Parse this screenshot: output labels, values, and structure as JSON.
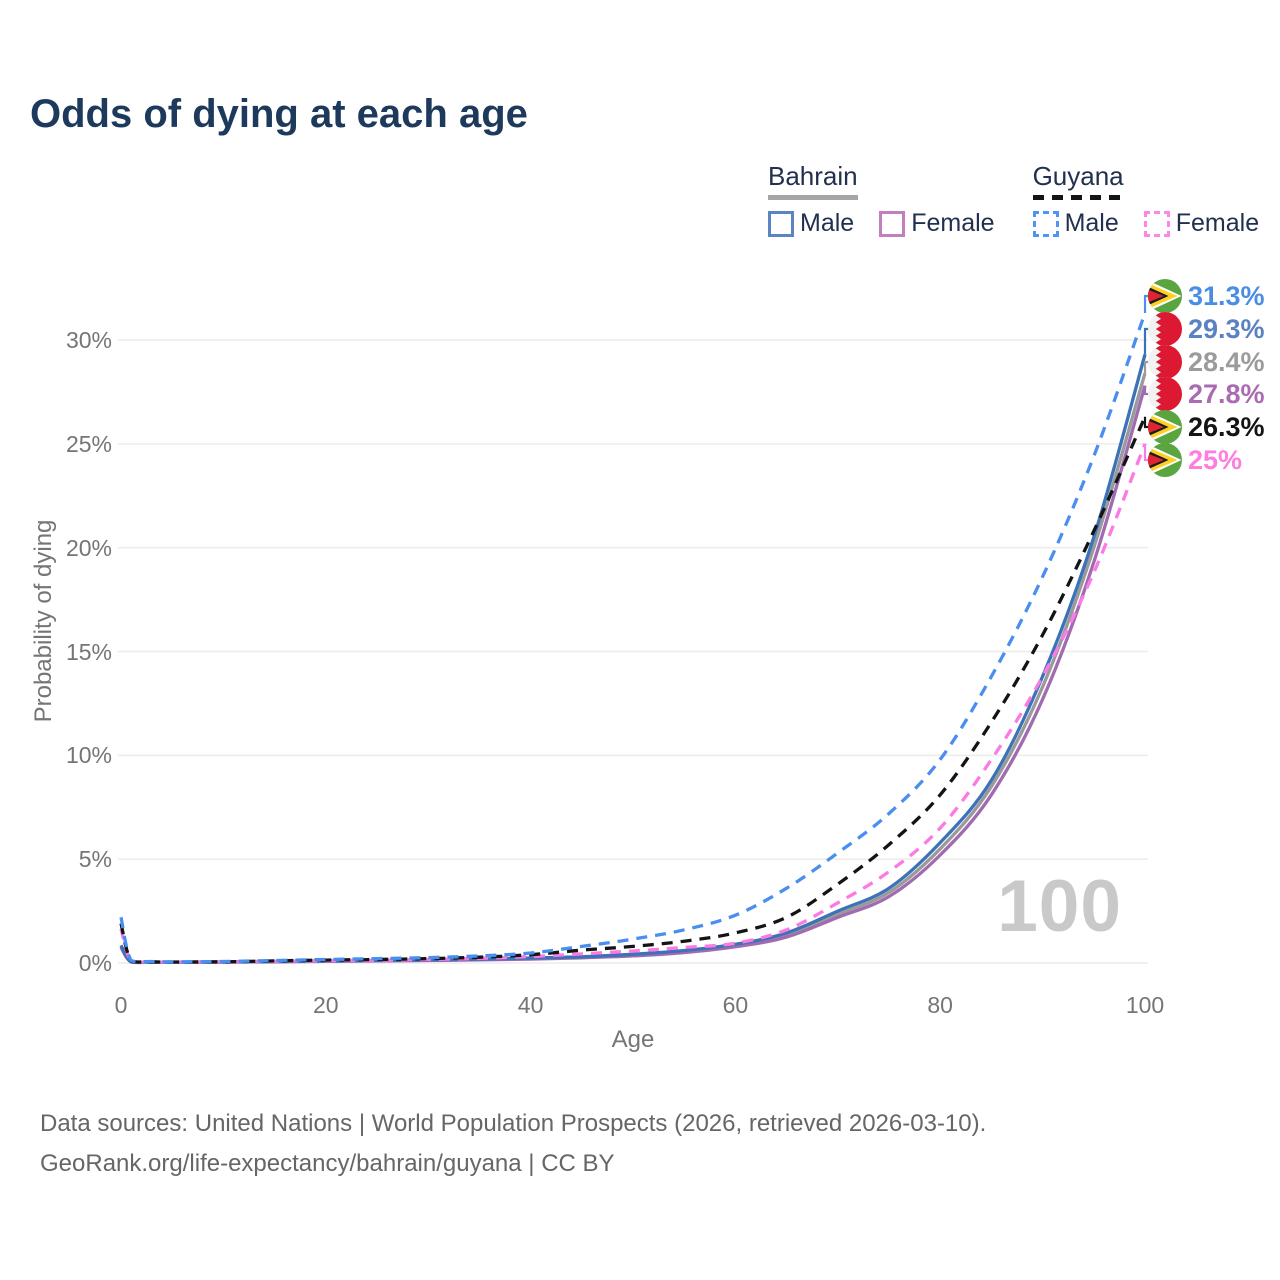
{
  "title": "Odds of dying at each age",
  "legend": {
    "groups": [
      {
        "name": "Bahrain",
        "underline": {
          "style": "solid",
          "color": "#a6a6a6"
        },
        "items": [
          {
            "label": "Male",
            "swatch_color": "#5b85c2",
            "dashed": false
          },
          {
            "label": "Female",
            "swatch_color": "#c17fc0",
            "dashed": false
          }
        ]
      },
      {
        "name": "Guyana",
        "underline": {
          "style": "dashed",
          "color": "#141414"
        },
        "items": [
          {
            "label": "Male",
            "swatch_color": "#4f94f2",
            "dashed": true
          },
          {
            "label": "Female",
            "swatch_color": "#fb85e9",
            "dashed": true
          }
        ]
      }
    ]
  },
  "chart_data": {
    "type": "line",
    "title": "Odds of dying at each age",
    "xlabel": "Age",
    "ylabel": "Probability of dying",
    "xlim": [
      0,
      100
    ],
    "ylim_pct": [
      0,
      32
    ],
    "grid": true,
    "x_ticks": [
      0,
      20,
      40,
      60,
      80,
      100
    ],
    "y_ticks_pct": [
      0,
      5,
      10,
      15,
      20,
      25,
      30
    ],
    "y_tick_labels": [
      "0%",
      "5%",
      "10%",
      "15%",
      "20%",
      "25%",
      "30%"
    ],
    "age_label": "100",
    "ages": [
      0,
      1,
      3,
      5,
      10,
      15,
      20,
      25,
      30,
      35,
      40,
      45,
      50,
      55,
      60,
      65,
      70,
      75,
      80,
      85,
      90,
      95,
      100
    ],
    "series": [
      {
        "id": "bahrain_total",
        "name": "Bahrain",
        "country": "Bahrain",
        "sex": "both",
        "line": "solid",
        "color": "#9a9a9a",
        "values_pct": [
          0.8,
          0.055,
          0.038,
          0.035,
          0.045,
          0.065,
          0.09,
          0.11,
          0.14,
          0.17,
          0.22,
          0.28,
          0.38,
          0.55,
          0.85,
          1.35,
          2.35,
          3.4,
          5.5,
          8.5,
          13.3,
          20.0,
          28.4
        ],
        "end_value_pct": 28.4
      },
      {
        "id": "bahrain_female",
        "name": "Bahrain Female",
        "country": "Bahrain",
        "sex": "female",
        "line": "solid",
        "color": "#a06bb0",
        "values_pct": [
          0.75,
          0.05,
          0.035,
          0.03,
          0.04,
          0.06,
          0.08,
          0.1,
          0.12,
          0.15,
          0.19,
          0.25,
          0.34,
          0.5,
          0.78,
          1.25,
          2.2,
          3.2,
          5.2,
          8.1,
          12.7,
          19.3,
          27.8
        ],
        "end_value_pct": 27.8
      },
      {
        "id": "bahrain_male",
        "name": "Bahrain Male",
        "country": "Bahrain",
        "sex": "male",
        "line": "solid",
        "color": "#3c72b8",
        "values_pct": [
          0.85,
          0.06,
          0.04,
          0.04,
          0.05,
          0.07,
          0.1,
          0.12,
          0.15,
          0.19,
          0.24,
          0.3,
          0.42,
          0.6,
          0.9,
          1.45,
          2.5,
          3.6,
          5.8,
          8.8,
          13.8,
          20.5,
          29.3
        ],
        "end_value_pct": 29.3
      },
      {
        "id": "guyana_female",
        "name": "Guyana Female",
        "country": "Guyana",
        "sex": "female",
        "line": "dashed",
        "color": "#fb7ae4",
        "values_pct": [
          1.65,
          0.1,
          0.05,
          0.045,
          0.05,
          0.08,
          0.11,
          0.13,
          0.17,
          0.22,
          0.31,
          0.44,
          0.58,
          0.75,
          0.95,
          1.6,
          2.9,
          4.4,
          6.5,
          9.8,
          13.8,
          18.8,
          25.0
        ],
        "end_value_pct": 25.0
      },
      {
        "id": "guyana_total",
        "name": "Guyana",
        "country": "Guyana",
        "sex": "both",
        "line": "dashed",
        "color": "#141414",
        "values_pct": [
          1.9,
          0.11,
          0.06,
          0.05,
          0.06,
          0.1,
          0.14,
          0.17,
          0.21,
          0.28,
          0.4,
          0.62,
          0.8,
          1.05,
          1.45,
          2.2,
          3.8,
          5.7,
          8.1,
          11.6,
          15.8,
          20.8,
          26.3
        ],
        "end_value_pct": 26.3
      },
      {
        "id": "guyana_male",
        "name": "Guyana Male",
        "country": "Guyana",
        "sex": "male",
        "line": "dashed",
        "color": "#4a8ef0",
        "values_pct": [
          2.2,
          0.12,
          0.07,
          0.06,
          0.07,
          0.12,
          0.17,
          0.21,
          0.26,
          0.34,
          0.48,
          0.8,
          1.15,
          1.6,
          2.3,
          3.6,
          5.3,
          7.2,
          9.8,
          13.8,
          18.6,
          24.4,
          31.3
        ],
        "end_value_pct": 31.3
      }
    ]
  },
  "end_labels": [
    {
      "series": "guyana_male",
      "text": "31.3%",
      "flag": "guyana",
      "color": "#4a8ee4"
    },
    {
      "series": "bahrain_male",
      "text": "29.3%",
      "flag": "bahrain",
      "color": "#5b82c0"
    },
    {
      "series": "bahrain_total",
      "text": "28.4%",
      "flag": "bahrain",
      "color": "#9b9b9b"
    },
    {
      "series": "bahrain_female",
      "text": "27.8%",
      "flag": "bahrain",
      "color": "#a96cb0"
    },
    {
      "series": "guyana_total",
      "text": "26.3%",
      "flag": "guyana",
      "color": "#141414"
    },
    {
      "series": "guyana_female",
      "text": "25%",
      "flag": "guyana",
      "color": "#ff7ce0"
    }
  ],
  "flag_colors": {
    "bahrain": {
      "white": "#f2f2f2",
      "red": "#dc1832"
    },
    "guyana": {
      "green": "#5aa53f",
      "white": "#ffffff",
      "yellow": "#fdd021",
      "black": "#1b1b1b",
      "red": "#dd2533"
    }
  },
  "footer": {
    "line1": "Data sources: United Nations | World Population Prospects (2026, retrieved 2026-03-10).",
    "line2": "GeoRank.org/life-expectancy/bahrain/guyana | CC BY"
  }
}
